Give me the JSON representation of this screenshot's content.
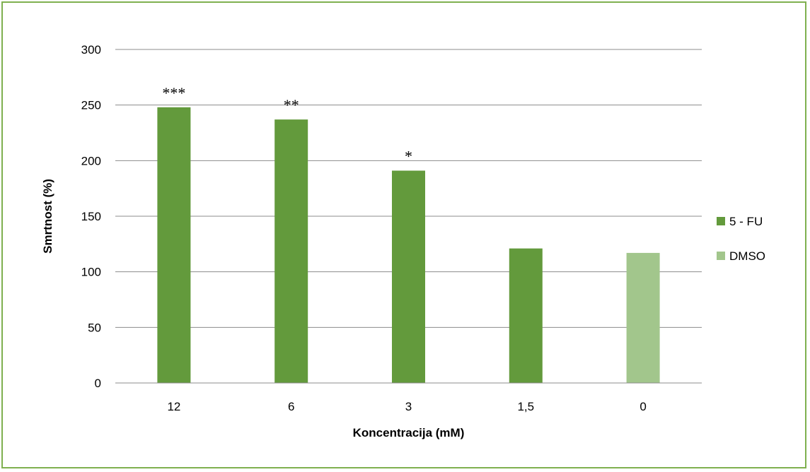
{
  "chart_data": {
    "type": "bar",
    "categories": [
      "12",
      "6",
      "3",
      "1,5",
      "0"
    ],
    "series": [
      {
        "name": "5 - FU",
        "color": "#639a3c",
        "values": [
          248,
          237,
          191,
          121,
          null
        ]
      },
      {
        "name": "DMSO",
        "color": "#a2c68c",
        "values": [
          null,
          null,
          null,
          null,
          117
        ]
      }
    ],
    "annotations": [
      "***",
      "**",
      "*",
      "",
      ""
    ],
    "xlabel": "Koncentracija (mM)",
    "ylabel": "Smrtnost (%)",
    "ylim": [
      0,
      300
    ],
    "yticks": [
      0,
      50,
      100,
      150,
      200,
      250,
      300
    ],
    "grid": true,
    "legend_position": "right"
  }
}
